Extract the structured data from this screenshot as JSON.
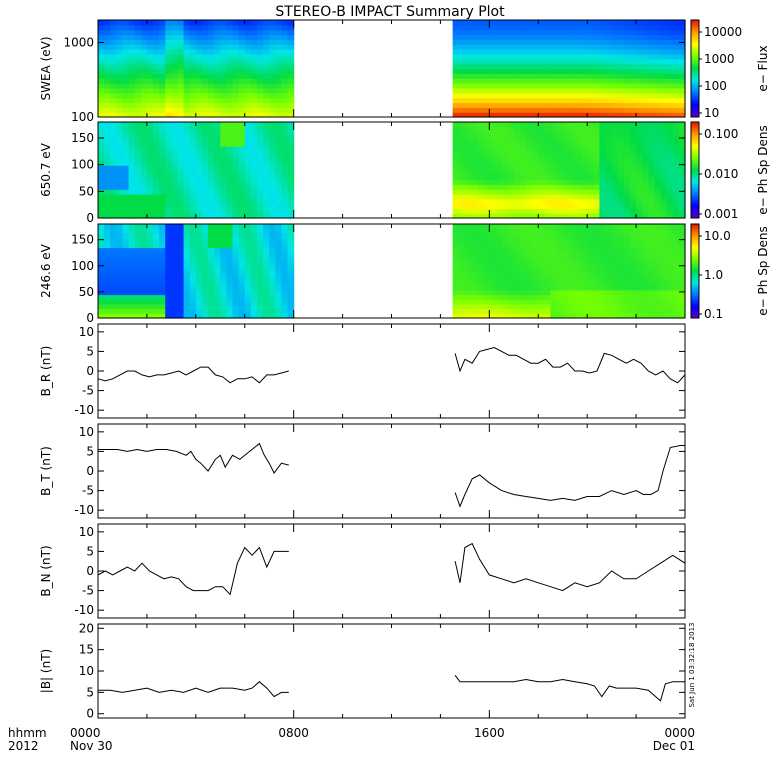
{
  "title": "STEREO-B IMPACT Summary Plot",
  "footer": {
    "label_line1": "hhmm",
    "label_line2": "2012",
    "ticks": [
      {
        "t": 0,
        "line1": "0000",
        "line2": "Nov 30"
      },
      {
        "t": 8,
        "line1": "0800",
        "line2": ""
      },
      {
        "t": 16,
        "line1": "1600",
        "line2": ""
      },
      {
        "t": 24,
        "line1": "0000",
        "line2": "Dec 01"
      }
    ]
  },
  "timestamp": "Sat Jun 1 03:32:18 2013",
  "colors": {
    "line": "#000000",
    "rainbow": [
      "#5a00c8",
      "#0000ff",
      "#0078ff",
      "#00e6e6",
      "#00dc46",
      "#78ff00",
      "#ffff00",
      "#ff9600",
      "#e61400"
    ]
  },
  "chart_data": [
    {
      "id": "swea",
      "type": "heatmap",
      "ylabel": "SWEA (eV)",
      "y_scale": "log",
      "ylim": [
        100,
        2000
      ],
      "y_ticks": [
        "1000",
        "100"
      ],
      "colorbar": {
        "label": "e− Flux",
        "ticks": [
          "10000",
          "1000",
          "100",
          "10"
        ],
        "range": [
          3,
          50000
        ],
        "scale": "log"
      },
      "time_range_hours": [
        0,
        24
      ],
      "data_gaps_hours": [
        [
          7.9,
          14.6
        ]
      ]
    },
    {
      "id": "pad650",
      "type": "heatmap",
      "ylabel": "650.7 eV",
      "ylim": [
        0,
        180
      ],
      "y_ticks": [
        "150",
        "100",
        "50",
        "0"
      ],
      "colorbar": {
        "label": "e− Ph Sp Dens",
        "ticks": [
          "0.100",
          "0.010",
          "0.001"
        ],
        "range": [
          0.001,
          0.1
        ],
        "scale": "log"
      },
      "time_range_hours": [
        0,
        24
      ],
      "data_gaps_hours": [
        [
          7.9,
          14.6
        ]
      ]
    },
    {
      "id": "pad246",
      "type": "heatmap",
      "ylabel": "246.6 eV",
      "ylim": [
        0,
        180
      ],
      "y_ticks": [
        "150",
        "100",
        "50",
        "0"
      ],
      "colorbar": {
        "label": "e− Ph Sp Dens",
        "ticks": [
          "10.0",
          "1.0",
          "0.1"
        ],
        "range": [
          0.1,
          10
        ],
        "scale": "log"
      },
      "time_range_hours": [
        0,
        24
      ],
      "data_gaps_hours": [
        [
          7.9,
          14.6
        ]
      ]
    },
    {
      "id": "br",
      "type": "line",
      "ylabel": "B_R (nT)",
      "ylim": [
        -12,
        12
      ],
      "y_ticks": [
        "10",
        "5",
        "0",
        "-5",
        "-10"
      ],
      "series": [
        {
          "x": [
            0,
            0.3,
            0.6,
            0.9,
            1.2,
            1.5,
            1.8,
            2.1,
            2.4,
            2.7,
            3,
            3.3,
            3.6,
            3.9,
            4.2,
            4.5,
            4.8,
            5.1,
            5.4,
            5.7,
            6,
            6.3,
            6.6,
            6.9,
            7.2,
            7.5,
            7.8
          ],
          "y": [
            -2,
            -2.5,
            -2,
            -1,
            0,
            0,
            -1,
            -1.5,
            -1,
            -1,
            -0.5,
            0,
            -1,
            0,
            1,
            1,
            -1,
            -1.5,
            -3,
            -2,
            -2,
            -1.5,
            -3,
            -1,
            -1,
            -0.5,
            0
          ]
        },
        {
          "x": [
            14.6,
            14.8,
            15,
            15.3,
            15.6,
            15.9,
            16.2,
            16.5,
            16.8,
            17.1,
            17.4,
            17.7,
            18,
            18.3,
            18.6,
            18.9,
            19.2,
            19.5,
            19.8,
            20.1,
            20.4,
            20.7,
            21,
            21.3,
            21.6,
            21.9,
            22.2,
            22.5,
            22.8,
            23.1,
            23.4,
            23.7,
            24
          ],
          "y": [
            4.5,
            0,
            3,
            2,
            5,
            5.5,
            6,
            5,
            4,
            4,
            3,
            2,
            2,
            3,
            1,
            1,
            2,
            0,
            0,
            -0.5,
            0,
            4.5,
            4,
            3,
            2,
            3,
            2,
            0,
            -1,
            0,
            -2,
            -3,
            -1
          ]
        }
      ]
    },
    {
      "id": "bt",
      "type": "line",
      "ylabel": "B_T (nT)",
      "ylim": [
        -12,
        12
      ],
      "y_ticks": [
        "10",
        "5",
        "0",
        "-5",
        "-10"
      ],
      "series": [
        {
          "x": [
            0,
            0.4,
            0.8,
            1.2,
            1.6,
            2,
            2.4,
            2.8,
            3.2,
            3.6,
            3.8,
            4,
            4.2,
            4.5,
            4.8,
            5,
            5.2,
            5.5,
            5.8,
            6,
            6.2,
            6.4,
            6.6,
            6.8,
            7,
            7.2,
            7.5,
            7.8
          ],
          "y": [
            5.5,
            5.5,
            5.5,
            5,
            5.5,
            5,
            5.5,
            5.5,
            5,
            4,
            5,
            3,
            2,
            0,
            3,
            4,
            1,
            4,
            3,
            4,
            5,
            6,
            7,
            4,
            2,
            -0.5,
            2,
            1.5
          ]
        },
        {
          "x": [
            14.6,
            14.8,
            15,
            15.3,
            15.6,
            16,
            16.5,
            17,
            17.5,
            18,
            18.5,
            19,
            19.5,
            20,
            20.5,
            21,
            21.5,
            22,
            22.3,
            22.6,
            22.9,
            23.1,
            23.4,
            23.8,
            24
          ],
          "y": [
            -5.5,
            -9,
            -6,
            -2,
            -1,
            -3,
            -5,
            -6,
            -6.5,
            -7,
            -7.5,
            -7,
            -7.5,
            -6.5,
            -6.5,
            -5,
            -6,
            -5,
            -6,
            -6,
            -5,
            0,
            6,
            6.5,
            6.5
          ]
        }
      ]
    },
    {
      "id": "bn",
      "type": "line",
      "ylabel": "B_N (nT)",
      "ylim": [
        -12,
        12
      ],
      "y_ticks": [
        "10",
        "5",
        "0",
        "-5",
        "-10"
      ],
      "series": [
        {
          "x": [
            0,
            0.3,
            0.6,
            0.9,
            1.2,
            1.5,
            1.8,
            2.1,
            2.4,
            2.7,
            3,
            3.3,
            3.6,
            3.9,
            4.2,
            4.5,
            4.8,
            5.1,
            5.4,
            5.7,
            6,
            6.3,
            6.6,
            6.9,
            7.2,
            7.5,
            7.8
          ],
          "y": [
            -1,
            0,
            -1,
            0,
            1,
            0,
            2,
            0,
            -1,
            -2,
            -1.5,
            -2,
            -4,
            -5,
            -5,
            -5,
            -4,
            -4,
            -6,
            2,
            6,
            4,
            6,
            1,
            5,
            5,
            5
          ]
        },
        {
          "x": [
            14.6,
            14.8,
            15,
            15.3,
            15.6,
            16,
            16.5,
            17,
            17.5,
            18,
            18.5,
            19,
            19.5,
            20,
            20.5,
            21,
            21.5,
            22,
            22.5,
            23,
            23.5,
            24
          ],
          "y": [
            2.5,
            -3,
            6,
            7,
            3,
            -1,
            -2,
            -3,
            -2,
            -3,
            -4,
            -5,
            -3,
            -4,
            -3,
            0,
            -2,
            -2,
            0,
            2,
            4,
            2
          ]
        }
      ]
    },
    {
      "id": "bmag",
      "type": "line",
      "ylabel": "|B| (nT)",
      "ylim": [
        -1,
        21
      ],
      "y_ticks": [
        "20",
        "15",
        "10",
        "5",
        "0"
      ],
      "series": [
        {
          "x": [
            0,
            0.5,
            1,
            1.5,
            2,
            2.5,
            3,
            3.5,
            4,
            4.5,
            5,
            5.5,
            6,
            6.3,
            6.6,
            6.9,
            7.2,
            7.5,
            7.8
          ],
          "y": [
            5.5,
            5.5,
            5,
            5.5,
            6,
            5,
            5.5,
            5,
            6,
            5,
            6,
            6,
            5.5,
            6,
            7.5,
            6,
            4,
            5,
            5
          ]
        },
        {
          "x": [
            14.6,
            14.8,
            15,
            15.5,
            16,
            16.5,
            17,
            17.5,
            18,
            18.5,
            19,
            19.5,
            20,
            20.3,
            20.6,
            20.9,
            21.2,
            21.5,
            22,
            22.5,
            23,
            23.2,
            23.5,
            24
          ],
          "y": [
            9,
            7.5,
            7.5,
            7.5,
            7.5,
            7.5,
            7.5,
            8,
            7.5,
            7.5,
            8,
            7.5,
            7,
            6.5,
            4,
            6.5,
            6,
            6,
            6,
            5.5,
            3,
            7,
            7.5,
            7.5
          ]
        }
      ]
    }
  ]
}
